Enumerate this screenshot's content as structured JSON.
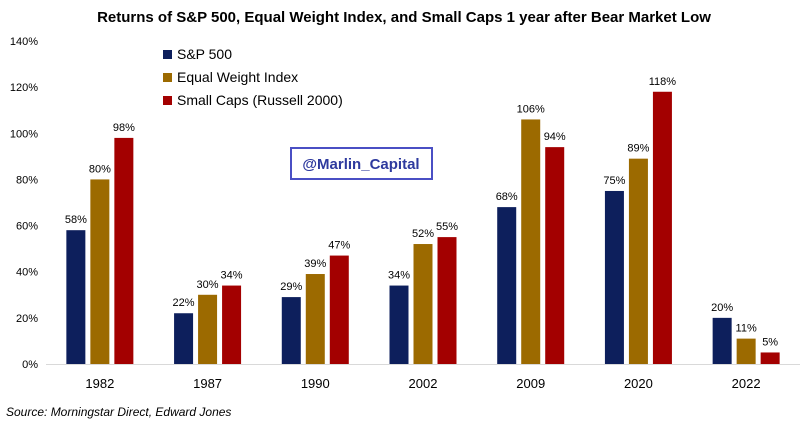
{
  "chart_data": {
    "type": "bar",
    "title": "Returns of S&P 500, Equal Weight Index, and Small Caps 1 year after Bear Market Low",
    "categories": [
      "1982",
      "1987",
      "1990",
      "2002",
      "2009",
      "2020",
      "2022"
    ],
    "series": [
      {
        "name": "S&P 500",
        "color": "#0d1f5c",
        "values": [
          58,
          22,
          29,
          34,
          68,
          75,
          20
        ],
        "labels": [
          "58%",
          "22%",
          "29%",
          "34%",
          "68%",
          "75%",
          "20%"
        ]
      },
      {
        "name": "Equal Weight Index",
        "color": "#9c6a00",
        "values": [
          80,
          30,
          39,
          52,
          106,
          89,
          11
        ],
        "labels": [
          "80%",
          "30%",
          "39%",
          "52%",
          "106%",
          "89%",
          "11%"
        ]
      },
      {
        "name": "Small Caps (Russell 2000)",
        "color": "#a30000",
        "values": [
          98,
          34,
          47,
          55,
          94,
          118,
          5
        ],
        "labels": [
          "98%",
          "34%",
          "47%",
          "55%",
          "94%",
          "118%",
          "5%"
        ]
      }
    ],
    "ylim": [
      0,
      140
    ],
    "yticks": [
      0,
      20,
      40,
      60,
      80,
      100,
      120,
      140
    ],
    "ytick_labels": [
      "0%",
      "20%",
      "40%",
      "60%",
      "80%",
      "100%",
      "120%",
      "140%"
    ],
    "grid": false,
    "legend_position": "top-left"
  },
  "watermark": "@Marlin_Capital",
  "source": "Source: Morningstar Direct, Edward Jones"
}
